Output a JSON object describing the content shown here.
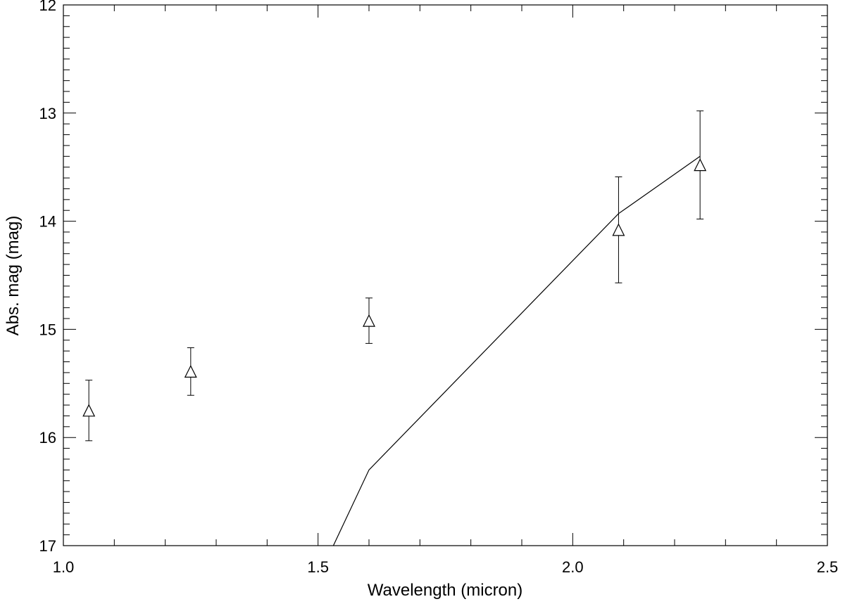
{
  "chart_data": {
    "type": "scatter",
    "title": "",
    "xlabel": "Wavelength (micron)",
    "ylabel": "Abs. mag (mag)",
    "xlim": [
      1.0,
      2.5
    ],
    "ylim": [
      17,
      12
    ],
    "y_inverted": true,
    "grid": false,
    "x_ticks": [
      "1.0",
      "1.5",
      "2.0",
      "2.5"
    ],
    "y_ticks": [
      "12",
      "13",
      "14",
      "15",
      "16",
      "17"
    ],
    "series": [
      {
        "kind": "points-with-errorbars",
        "marker": "triangle-open",
        "x": [
          1.05,
          1.25,
          1.6,
          2.09,
          2.25
        ],
        "y": [
          15.75,
          15.39,
          14.92,
          14.08,
          13.48
        ],
        "yerr": [
          0.28,
          0.22,
          0.21,
          0.49,
          0.5
        ]
      },
      {
        "kind": "line",
        "x": [
          1.53,
          1.6,
          2.09,
          2.25
        ],
        "y": [
          17.0,
          16.3,
          13.93,
          13.4
        ]
      }
    ]
  }
}
